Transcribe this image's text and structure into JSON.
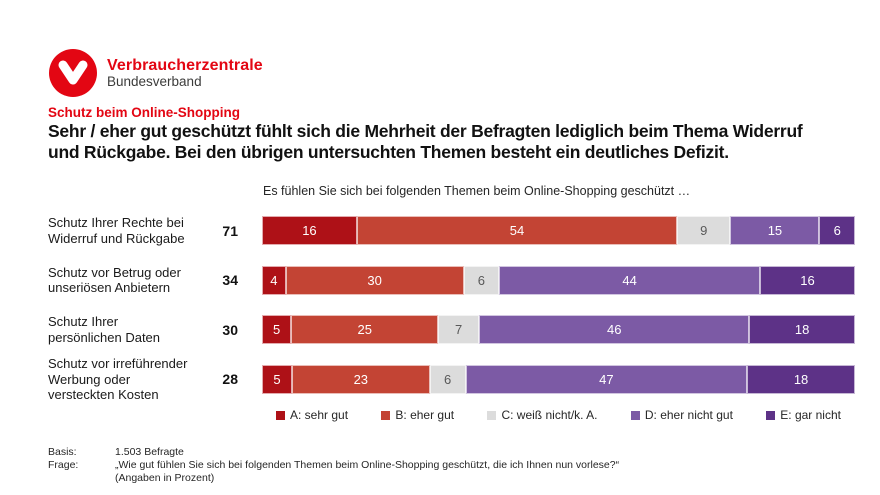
{
  "logo": {
    "brand": "Verbraucherzentrale",
    "sub": "Bundesverband"
  },
  "kicker": "Schutz beim Online-Shopping",
  "headline": "Sehr / eher gut geschützt fühlt sich die Mehrheit der Befragten lediglich beim Thema Widerruf\nund Rückgabe. Bei den übrigen untersuchten Themen besteht ein deutliches Defizit.",
  "chart_data": {
    "type": "bar",
    "subtype": "horizontal-stacked-percent",
    "title": "Es fühlen Sie sich bei folgenden Themen beim Online-Shopping geschützt …",
    "categories": [
      "Schutz Ihrer Rechte bei\nWiderruf und Rückgabe",
      "Schutz vor Betrug oder\nunseriösen Anbietern",
      "Schutz Ihrer\npersönlichen Daten",
      "Schutz vor irreführender\nWerbung oder\nversteckten Kosten"
    ],
    "totals": [
      71,
      34,
      30,
      28
    ],
    "series": [
      {
        "name": "A: sehr gut",
        "color": "#ae1117",
        "label_color": "#ffffff",
        "values": [
          16,
          4,
          5,
          5
        ]
      },
      {
        "name": "B: eher gut",
        "color": "#c34434",
        "label_color": "#ffffff",
        "values": [
          54,
          30,
          25,
          23
        ]
      },
      {
        "name": "C: weiß nicht/k. A.",
        "color": "#dcdcdc",
        "label_color": "#595959",
        "values": [
          9,
          6,
          7,
          6
        ]
      },
      {
        "name": "D: eher nicht gut",
        "color": "#7c5aa5",
        "label_color": "#ffffff",
        "values": [
          15,
          44,
          46,
          47
        ]
      },
      {
        "name": "E: gar nicht",
        "color": "#5d3287",
        "label_color": "#ffffff",
        "values": [
          6,
          16,
          18,
          18
        ]
      }
    ],
    "xlim": [
      0,
      100
    ],
    "legend_position": "bottom",
    "value_labels": "inside",
    "grid": false
  },
  "footer": {
    "basis_label": "Basis:",
    "basis_value": "1.503 Befragte",
    "frage_label": "Frage:",
    "frage_value": "„Wie gut fühlen Sie sich bei folgenden Themen beim Online-Shopping geschützt, die ich Ihnen nun vorlese?“",
    "frage_note": "(Angaben in Prozent)"
  },
  "colors": {
    "brand_red": "#e30613",
    "text_dark": "#111111",
    "text_gray": "#3c3c3b"
  }
}
